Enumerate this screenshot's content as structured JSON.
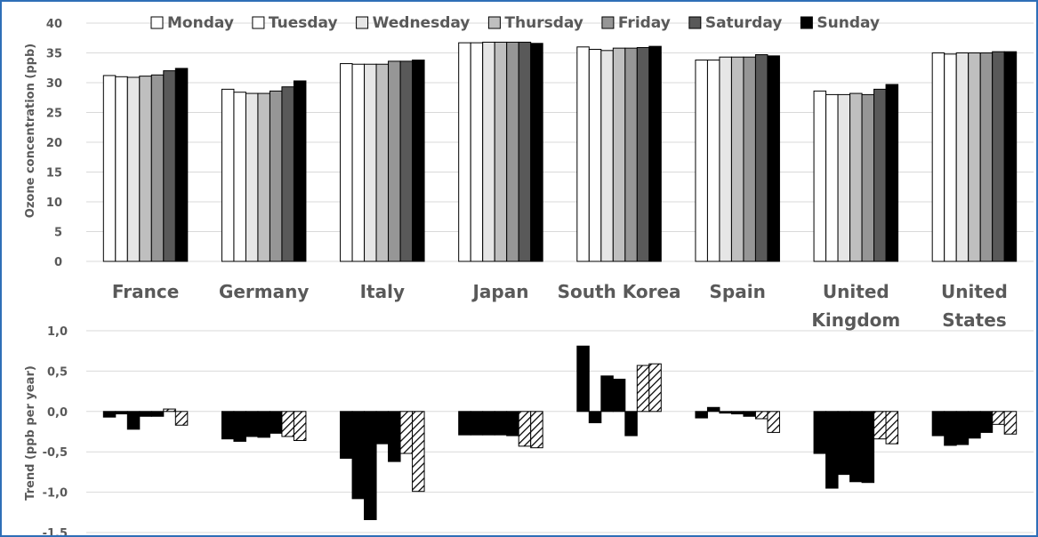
{
  "chart_data": [
    {
      "type": "bar",
      "title": "",
      "ylabel": "Ozone concentration (ppb)",
      "ylim": [
        0,
        40
      ],
      "yticks": [
        "0",
        "5",
        "10",
        "15",
        "20",
        "25",
        "30",
        "35",
        "40"
      ],
      "legend_position": "top",
      "grid": true,
      "categories": [
        "France",
        "Germany",
        "Italy",
        "Japan",
        "South Korea",
        "Spain",
        "United Kingdom",
        "United States"
      ],
      "series": [
        {
          "name": "Monday",
          "color": "#ffffff",
          "values": [
            31.2,
            28.9,
            33.2,
            36.7,
            36.0,
            33.8,
            28.6,
            35.0
          ]
        },
        {
          "name": "Tuesday",
          "color": "#ffffff",
          "values": [
            31.0,
            28.4,
            33.1,
            36.7,
            35.6,
            33.8,
            28.0,
            34.8
          ]
        },
        {
          "name": "Wednesday",
          "color": "#e6e6e6",
          "values": [
            30.9,
            28.2,
            33.1,
            36.8,
            35.4,
            34.3,
            28.0,
            35.0
          ]
        },
        {
          "name": "Thursday",
          "color": "#bfbfbf",
          "values": [
            31.1,
            28.2,
            33.1,
            36.8,
            35.8,
            34.3,
            28.2,
            35.0
          ]
        },
        {
          "name": "Friday",
          "color": "#969696",
          "values": [
            31.3,
            28.6,
            33.6,
            36.8,
            35.8,
            34.3,
            28.0,
            35.0
          ]
        },
        {
          "name": "Saturday",
          "color": "#595959",
          "values": [
            32.0,
            29.3,
            33.6,
            36.8,
            35.9,
            34.7,
            28.9,
            35.2
          ]
        },
        {
          "name": "Sunday",
          "color": "#000000",
          "values": [
            32.4,
            30.3,
            33.8,
            36.6,
            36.1,
            34.5,
            29.7,
            35.2
          ]
        }
      ]
    },
    {
      "type": "bar",
      "title": "",
      "ylabel": "Trend (ppb per year)",
      "ylim": [
        -1.5,
        1.0
      ],
      "yticks": [
        "1,0",
        "0,5",
        "0,0",
        "-0,5",
        "-1,0",
        "-1,5"
      ],
      "grid": true,
      "categories": [
        "France",
        "Germany",
        "Italy",
        "Japan",
        "South Korea",
        "Spain",
        "United Kingdom",
        "United States"
      ],
      "series_patterns": [
        "solid",
        "solid",
        "solid",
        "solid",
        "solid",
        "hatched",
        "hatched"
      ],
      "series": [
        {
          "values": [
            -0.07,
            -0.34,
            -0.58,
            -0.29,
            0.81,
            -0.08,
            -0.52,
            -0.3
          ]
        },
        {
          "values": [
            -0.03,
            -0.37,
            -1.08,
            -0.29,
            -0.14,
            0.05,
            -0.95,
            -0.42
          ]
        },
        {
          "values": [
            -0.22,
            -0.31,
            -1.34,
            -0.29,
            0.44,
            -0.02,
            -0.78,
            -0.41
          ]
        },
        {
          "values": [
            -0.06,
            -0.32,
            -0.4,
            -0.29,
            0.4,
            -0.03,
            -0.87,
            -0.33
          ]
        },
        {
          "values": [
            -0.06,
            -0.27,
            -0.62,
            -0.3,
            -0.3,
            -0.06,
            -0.88,
            -0.26
          ]
        },
        {
          "values": [
            0.03,
            -0.31,
            -0.52,
            -0.43,
            0.57,
            -0.09,
            -0.34,
            -0.16
          ]
        },
        {
          "values": [
            -0.17,
            -0.36,
            -0.99,
            -0.45,
            0.59,
            -0.26,
            -0.4,
            -0.28
          ]
        }
      ]
    }
  ]
}
